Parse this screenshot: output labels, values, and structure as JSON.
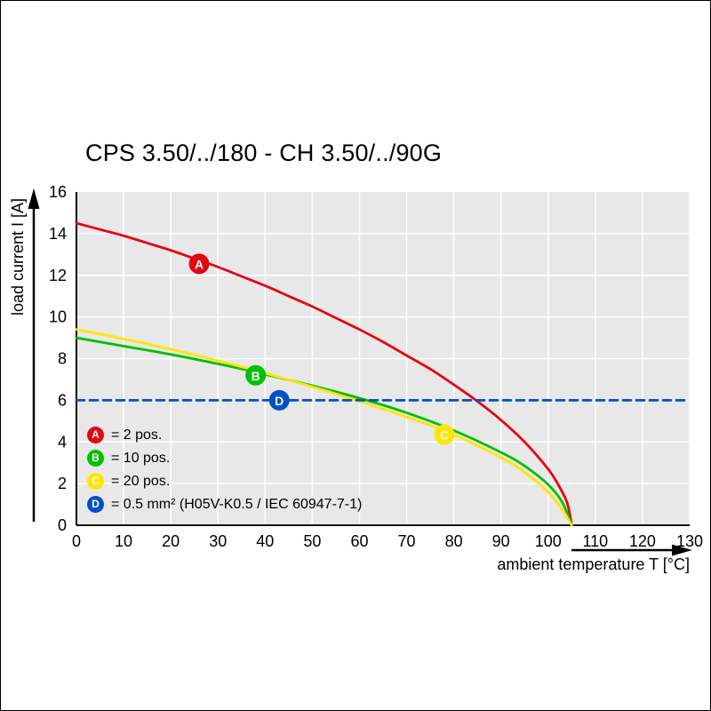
{
  "title": "CPS 3.50/../180 - CH 3.50/../90G",
  "chart_data": {
    "type": "line",
    "title": "CPS 3.50/../180 - CH 3.50/../90G",
    "xlabel": "ambient temperature T [°C]",
    "ylabel": "load current I [A]",
    "xlim": [
      0,
      130
    ],
    "ylim": [
      0,
      16
    ],
    "x_ticks": [
      0,
      10,
      20,
      30,
      40,
      50,
      60,
      70,
      80,
      90,
      100,
      110,
      120,
      130
    ],
    "y_ticks": [
      0,
      2,
      4,
      6,
      8,
      10,
      12,
      14,
      16
    ],
    "grid": true,
    "legend_position": "lower-left",
    "colors": {
      "plot_bg": "#e8e8e8",
      "grid": "#ffffff",
      "axis": "#000000"
    },
    "series": [
      {
        "id": "A",
        "label": "2 pos.",
        "color": "#e30613",
        "line": "solid",
        "points": [
          [
            0,
            14.5
          ],
          [
            5,
            14.2
          ],
          [
            10,
            13.9
          ],
          [
            15,
            13.55
          ],
          [
            20,
            13.2
          ],
          [
            25,
            12.8
          ],
          [
            30,
            12.4
          ],
          [
            35,
            11.95
          ],
          [
            40,
            11.5
          ],
          [
            45,
            11.0
          ],
          [
            50,
            10.5
          ],
          [
            55,
            9.95
          ],
          [
            60,
            9.4
          ],
          [
            65,
            8.8
          ],
          [
            70,
            8.15
          ],
          [
            75,
            7.5
          ],
          [
            80,
            6.75
          ],
          [
            85,
            5.95
          ],
          [
            90,
            5.05
          ],
          [
            95,
            4.0
          ],
          [
            100,
            2.7
          ],
          [
            102,
            2.0
          ],
          [
            104,
            1.1
          ],
          [
            105,
            0
          ]
        ],
        "marker": {
          "x": 26,
          "y": 12.55,
          "letter": "A"
        }
      },
      {
        "id": "B",
        "label": "10 pos.",
        "color": "#00c000",
        "line": "solid",
        "points": [
          [
            0,
            9.0
          ],
          [
            10,
            8.6
          ],
          [
            20,
            8.2
          ],
          [
            30,
            7.75
          ],
          [
            40,
            7.25
          ],
          [
            50,
            6.7
          ],
          [
            60,
            6.1
          ],
          [
            70,
            5.4
          ],
          [
            80,
            4.55
          ],
          [
            90,
            3.5
          ],
          [
            95,
            2.85
          ],
          [
            100,
            1.95
          ],
          [
            103,
            1.1
          ],
          [
            105,
            0
          ]
        ],
        "marker": {
          "x": 38,
          "y": 7.2,
          "letter": "B"
        }
      },
      {
        "id": "C",
        "label": "20 pos.",
        "color": "#ffe600",
        "line": "solid",
        "points": [
          [
            0,
            9.4
          ],
          [
            10,
            8.95
          ],
          [
            20,
            8.45
          ],
          [
            30,
            7.9
          ],
          [
            40,
            7.3
          ],
          [
            50,
            6.65
          ],
          [
            60,
            5.95
          ],
          [
            70,
            5.2
          ],
          [
            80,
            4.35
          ],
          [
            90,
            3.25
          ],
          [
            95,
            2.55
          ],
          [
            100,
            1.6
          ],
          [
            103,
            0.75
          ],
          [
            105,
            0
          ]
        ],
        "marker": {
          "x": 78,
          "y": 4.35,
          "letter": "C"
        }
      },
      {
        "id": "D",
        "label": "0.5 mm² (H05V-K0.5 / IEC 60947-7-1)",
        "color": "#0050c8",
        "line": "dashed",
        "points": [
          [
            0,
            6
          ],
          [
            130,
            6
          ]
        ],
        "marker": {
          "x": 43,
          "y": 6,
          "letter": "D"
        }
      }
    ],
    "legend": [
      {
        "letter": "A",
        "text": "= 2 pos."
      },
      {
        "letter": "B",
        "text": "= 10 pos."
      },
      {
        "letter": "C",
        "text": "= 20 pos."
      },
      {
        "letter": "D",
        "text": "= 0.5 mm² (H05V-K0.5 / IEC 60947-7-1)"
      }
    ]
  }
}
